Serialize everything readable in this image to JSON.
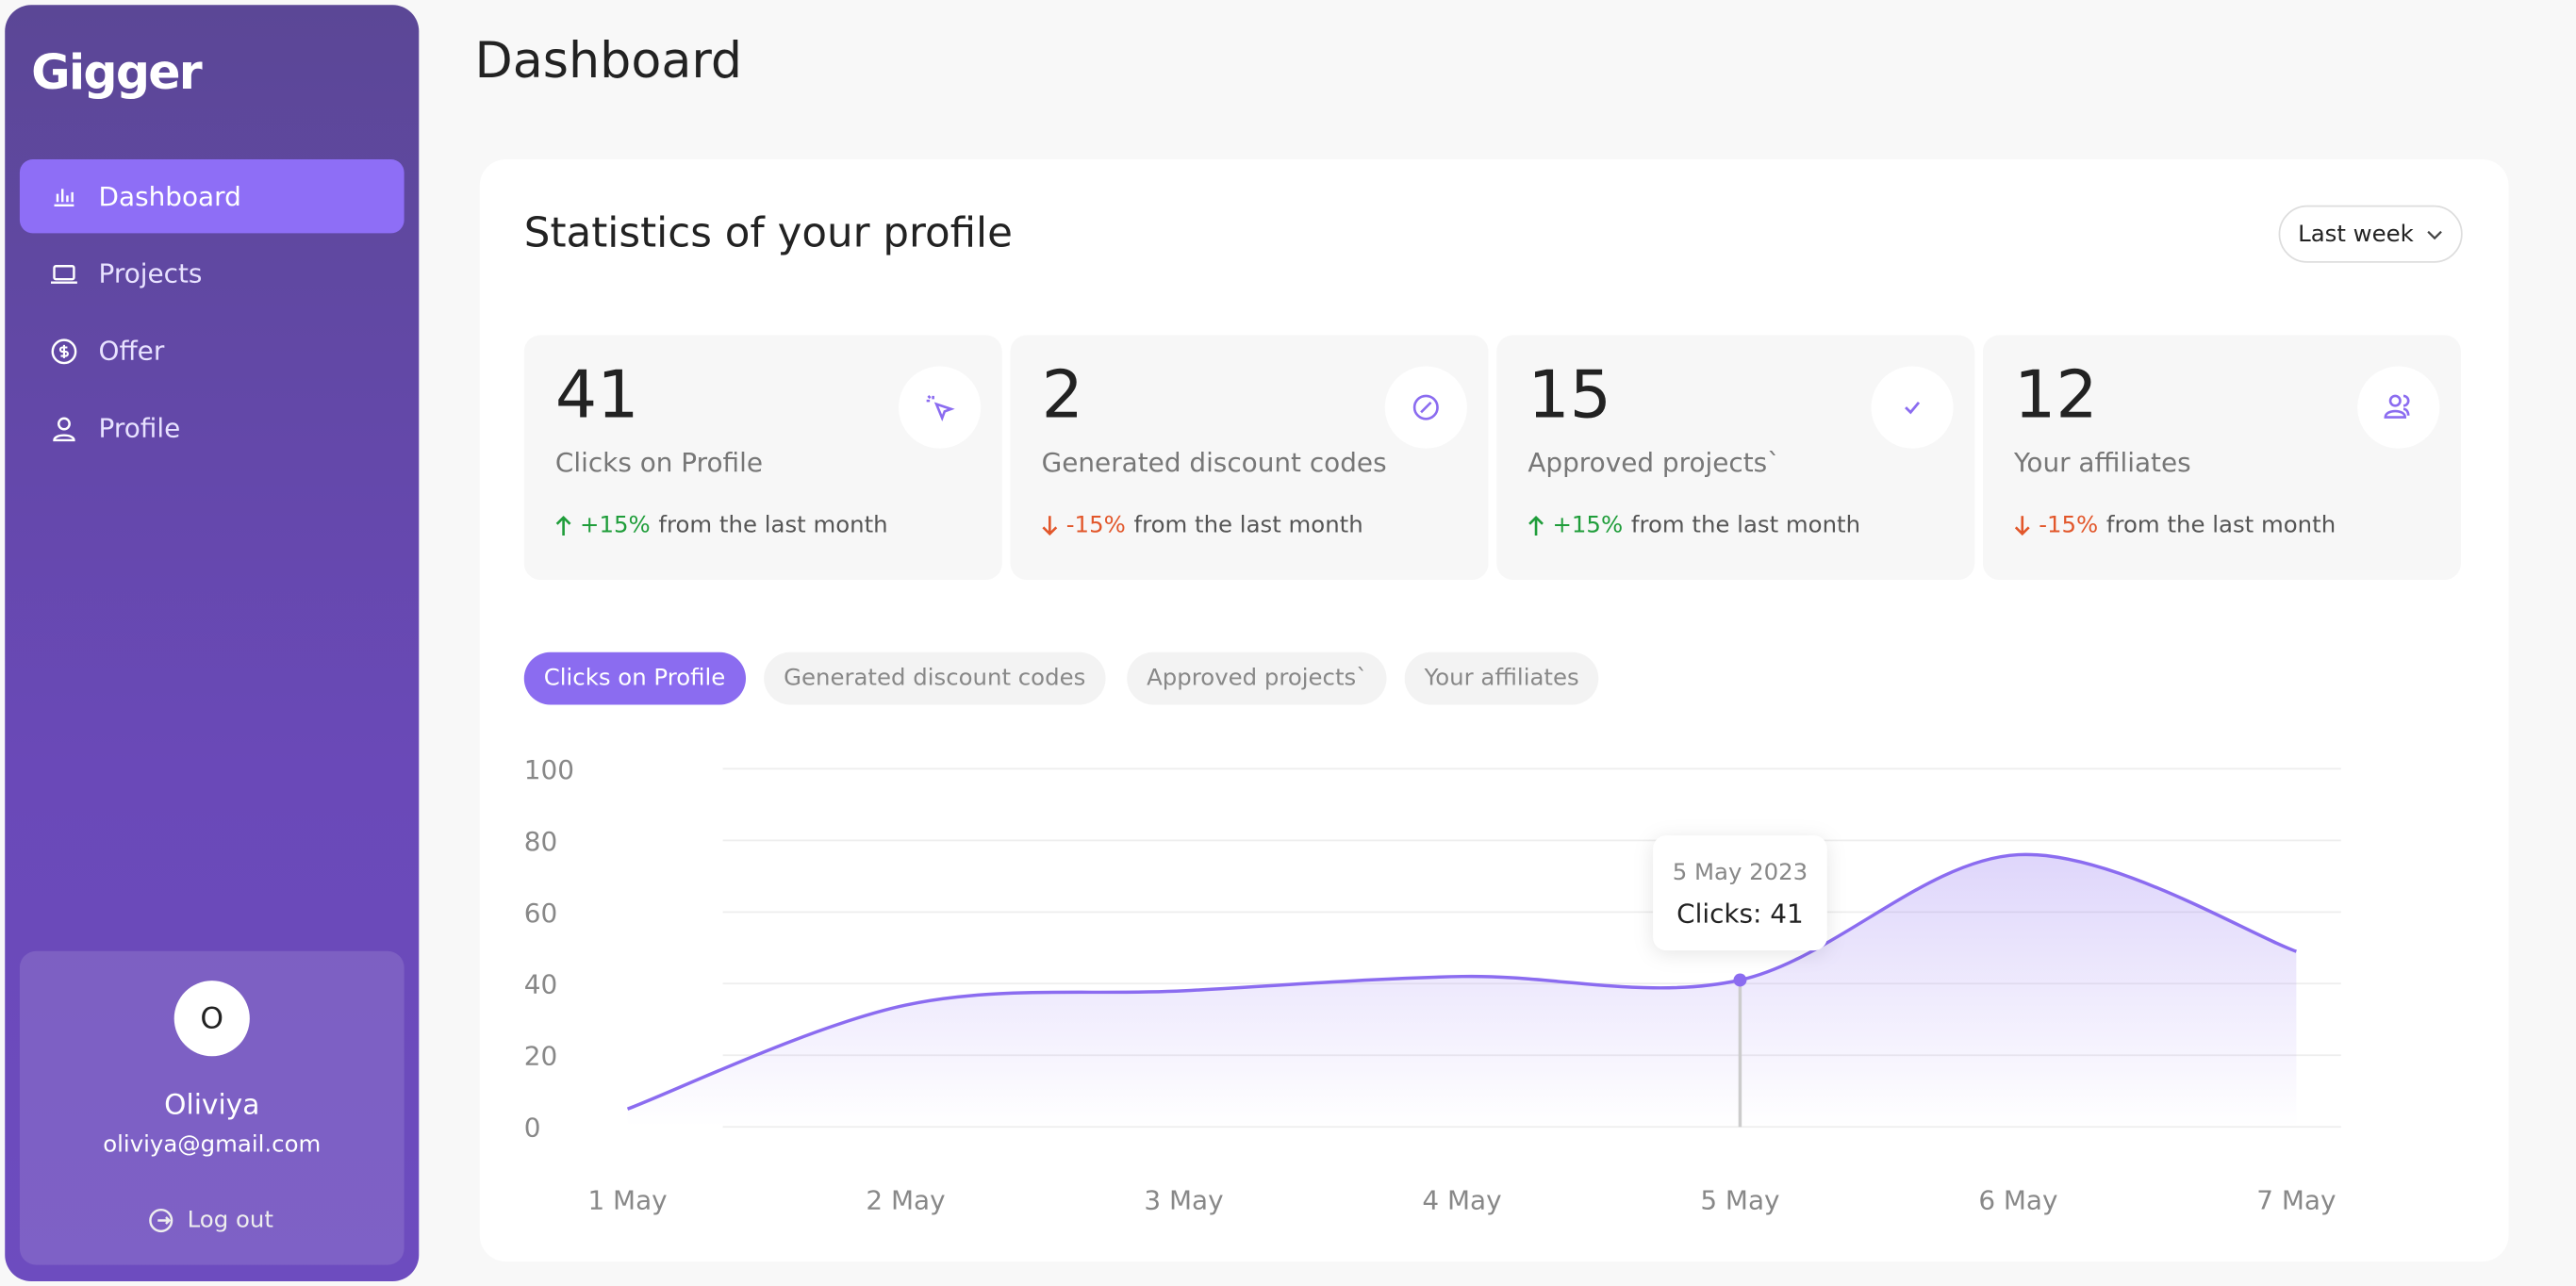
{
  "sidebar": {
    "logo": "Gigger",
    "nav": [
      "Dashboard",
      "Projects",
      "Offer",
      "Profile"
    ],
    "user": {
      "initial": "O",
      "name": "Oliviya",
      "email": "oliviya@gmail.com"
    },
    "logout": "Log out"
  },
  "header": {
    "title": "Dashboard"
  },
  "panel": {
    "title": "Statistics of your profile",
    "period": "Last week"
  },
  "stats": [
    {
      "value": "41",
      "label": "Clicks on Profile",
      "change": "+15%",
      "trend": "up",
      "note": "from the last month"
    },
    {
      "value": "2",
      "label": "Generated discount codes",
      "change": "-15%",
      "trend": "down",
      "note": "from the last month"
    },
    {
      "value": "15",
      "label": "Approved projects`",
      "change": "+15%",
      "trend": "up",
      "note": "from the last month"
    },
    {
      "value": "12",
      "label": "Your affiliates",
      "change": "-15%",
      "trend": "down",
      "note": "from the last month"
    }
  ],
  "tabs": [
    "Clicks on Profile",
    "Generated discount codes",
    "Approved projects`",
    "Your affiliates"
  ],
  "chart_data": {
    "type": "line",
    "categories": [
      "1 May",
      "2 May",
      "3 May",
      "4 May",
      "5 May",
      "6 May",
      "7 May"
    ],
    "values": [
      5,
      34,
      38,
      42,
      41,
      76,
      49
    ],
    "color": "#8b6cf0",
    "ylim": [
      0,
      100
    ],
    "yticks": [
      0,
      20,
      40,
      60,
      80,
      100
    ],
    "grid": true,
    "tooltip": {
      "index": 4,
      "date": "5 May 2023",
      "label": "Clicks: 41"
    }
  }
}
